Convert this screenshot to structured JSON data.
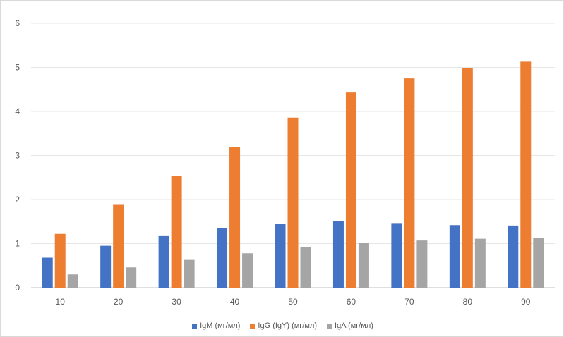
{
  "chart_data": {
    "type": "bar",
    "categories": [
      "10",
      "20",
      "30",
      "40",
      "50",
      "60",
      "70",
      "80",
      "90"
    ],
    "series": [
      {
        "name": "IgM (мг/мл)",
        "color": "#4472c4",
        "values": [
          0.68,
          0.95,
          1.17,
          1.35,
          1.44,
          1.51,
          1.45,
          1.42,
          1.41
        ]
      },
      {
        "name": "IgG (IgY) (мг/мл)",
        "color": "#ed7d31",
        "values": [
          1.22,
          1.88,
          2.53,
          3.2,
          3.86,
          4.43,
          4.75,
          4.98,
          5.13
        ]
      },
      {
        "name": "IgA (мг/мл)",
        "color": "#a5a5a5",
        "values": [
          0.3,
          0.46,
          0.63,
          0.78,
          0.92,
          1.02,
          1.07,
          1.11,
          1.12
        ]
      }
    ],
    "y_ticks": [
      "0",
      "1",
      "2",
      "3",
      "4",
      "5",
      "6"
    ],
    "ylim": [
      0,
      6
    ],
    "grid": true,
    "legend_position": "bottom"
  }
}
